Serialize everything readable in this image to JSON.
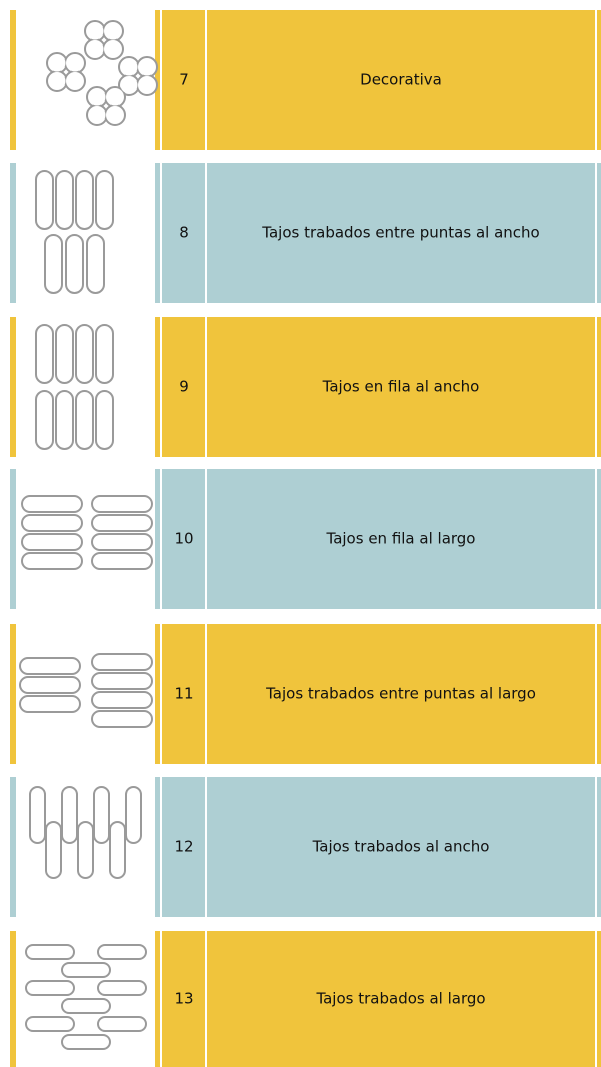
{
  "rows": [
    {
      "number": 7,
      "label": "Decorativa",
      "color": "#f0c43c"
    },
    {
      "number": 8,
      "label": "Tajos trabados entre puntas al ancho",
      "color": "#aecfd3"
    },
    {
      "number": 9,
      "label": "Tajos en fila al ancho",
      "color": "#f0c43c"
    },
    {
      "number": 10,
      "label": "Tajos en fila al largo",
      "color": "#aecfd3"
    },
    {
      "number": 11,
      "label": "Tajos trabados entre puntas al largo",
      "color": "#f0c43c"
    },
    {
      "number": 12,
      "label": "Tajos trabados al ancho",
      "color": "#aecfd3"
    },
    {
      "number": 13,
      "label": "Tajos trabados al largo",
      "color": "#f0c43c"
    }
  ]
}
